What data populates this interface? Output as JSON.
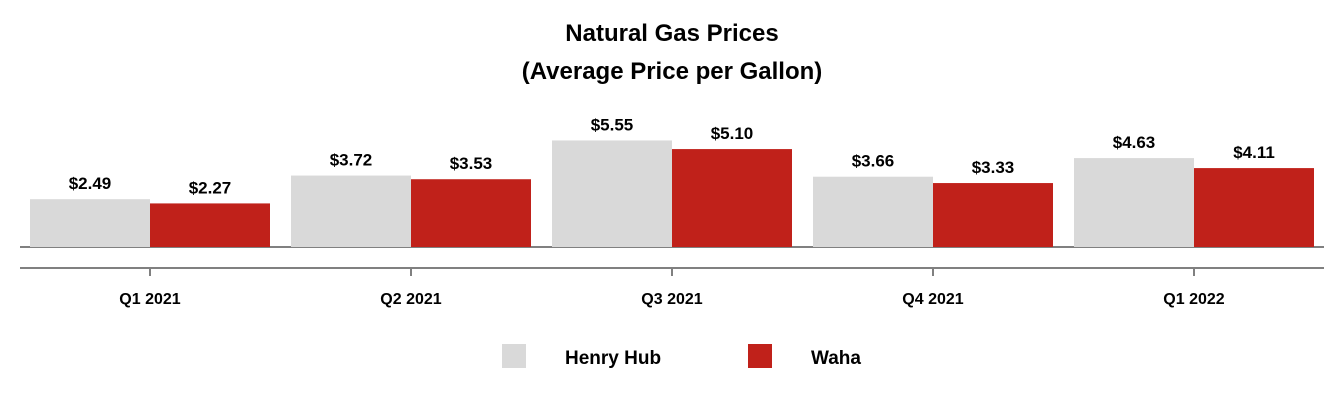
{
  "chart_data": {
    "type": "bar",
    "title": "Natural Gas Prices",
    "subtitle": "(Average Price per Gallon)",
    "categories": [
      "Q1 2021",
      "Q2 2021",
      "Q3 2021",
      "Q4 2021",
      "Q1 2022"
    ],
    "series": [
      {
        "name": "Henry Hub",
        "color": "#d9d9d9",
        "values": [
          2.49,
          3.72,
          5.55,
          3.66,
          4.63
        ],
        "labels": [
          "$2.49",
          "$3.72",
          "$5.55",
          "$3.66",
          "$4.63"
        ]
      },
      {
        "name": "Waha",
        "color": "#c0211a",
        "values": [
          2.27,
          3.53,
          5.1,
          3.33,
          4.11
        ],
        "labels": [
          "$2.27",
          "$3.53",
          "$5.10",
          "$3.33",
          "$4.11"
        ]
      }
    ],
    "xlabel": "",
    "ylabel": "",
    "ylim": [
      0,
      6
    ],
    "grid": false,
    "legend": "bottom",
    "axis_color": "#808080"
  }
}
